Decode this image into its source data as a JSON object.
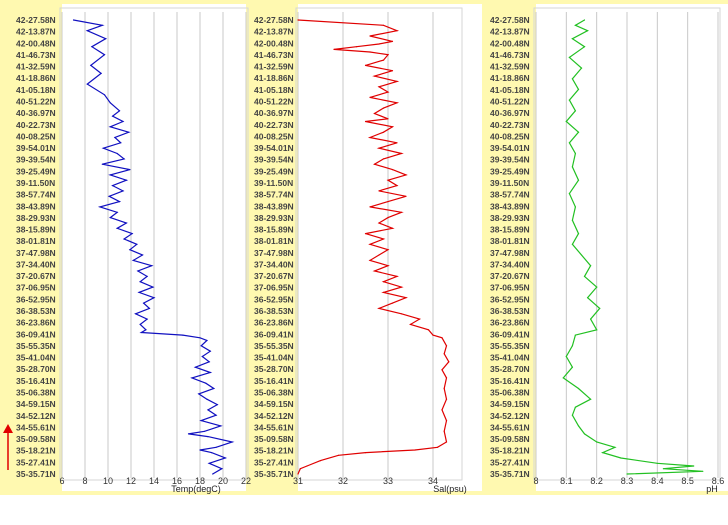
{
  "chart_data": [
    {
      "type": "line",
      "xlabel": "Temp(degC)",
      "ylabel": "",
      "x_ticks": [
        "6",
        "8",
        "10",
        "12",
        "14",
        "16",
        "18",
        "20",
        "22"
      ],
      "xlim": [
        6,
        22
      ],
      "line_color": "#1010c0",
      "series": [
        {
          "values": [
            [
              7.0,
              0
            ],
            [
              9.5,
              2
            ],
            [
              8.2,
              4
            ],
            [
              9.8,
              7
            ],
            [
              8.6,
              10
            ],
            [
              9.7,
              13
            ],
            [
              8.5,
              17
            ],
            [
              9.4,
              20
            ],
            [
              8.2,
              24
            ],
            [
              9.7,
              28
            ],
            [
              10.2,
              31
            ],
            [
              11.0,
              34
            ],
            [
              10.4,
              36
            ],
            [
              11.3,
              38
            ],
            [
              10.2,
              40
            ],
            [
              11.8,
              42
            ],
            [
              10.6,
              44
            ],
            [
              11.1,
              46
            ],
            [
              9.6,
              48
            ],
            [
              10.8,
              50
            ],
            [
              11.4,
              52
            ],
            [
              9.5,
              54
            ],
            [
              11.9,
              56
            ],
            [
              10.2,
              58
            ],
            [
              11.6,
              60
            ],
            [
              10.4,
              62
            ],
            [
              11.3,
              64
            ],
            [
              10.1,
              66
            ],
            [
              11.0,
              68
            ],
            [
              9.3,
              70
            ],
            [
              10.8,
              72
            ],
            [
              10.2,
              74
            ],
            [
              11.6,
              76
            ],
            [
              10.8,
              78
            ],
            [
              12.1,
              80
            ],
            [
              11.4,
              82
            ],
            [
              12.5,
              84
            ],
            [
              11.9,
              86
            ],
            [
              13.0,
              88
            ],
            [
              12.2,
              90
            ],
            [
              13.8,
              92
            ],
            [
              12.6,
              94
            ],
            [
              13.4,
              96
            ],
            [
              12.8,
              98
            ],
            [
              13.9,
              100
            ],
            [
              12.7,
              102
            ],
            [
              14.0,
              104
            ],
            [
              13.1,
              106
            ],
            [
              13.6,
              108
            ],
            [
              12.4,
              110
            ],
            [
              13.4,
              112
            ],
            [
              12.8,
              114
            ],
            [
              13.3,
              116
            ],
            [
              12.9,
              117
            ],
            [
              16.5,
              118
            ],
            [
              18.0,
              119
            ],
            [
              18.6,
              120
            ],
            [
              18.1,
              122
            ],
            [
              18.9,
              124
            ],
            [
              18.2,
              126
            ],
            [
              18.8,
              128
            ],
            [
              17.6,
              130
            ],
            [
              18.9,
              132
            ],
            [
              17.3,
              134
            ],
            [
              18.5,
              136
            ],
            [
              19.2,
              138
            ],
            [
              17.9,
              140
            ],
            [
              18.6,
              142
            ],
            [
              19.5,
              144
            ],
            [
              18.7,
              146
            ],
            [
              19.4,
              148
            ],
            [
              18.1,
              150
            ],
            [
              19.8,
              152
            ],
            [
              18.4,
              154
            ],
            [
              17.0,
              155
            ],
            [
              18.7,
              156
            ],
            [
              20.8,
              158
            ],
            [
              19.4,
              160
            ],
            [
              18.0,
              161
            ],
            [
              19.0,
              162
            ],
            [
              20.2,
              164
            ],
            [
              18.8,
              166
            ],
            [
              19.9,
              168
            ],
            [
              19.1,
              170
            ]
          ]
        }
      ]
    },
    {
      "type": "line",
      "xlabel": "Sal(psu)",
      "ylabel": "",
      "x_ticks": [
        "31",
        "32",
        "33",
        "34"
      ],
      "xlim": [
        31,
        34.6
      ],
      "line_color": "#e00000",
      "series": [
        {
          "values": [
            [
              31.0,
              0
            ],
            [
              32.9,
              2
            ],
            [
              33.2,
              4
            ],
            [
              32.6,
              6
            ],
            [
              33.1,
              8
            ],
            [
              32.8,
              9
            ],
            [
              32.3,
              10
            ],
            [
              31.8,
              11
            ],
            [
              32.6,
              12
            ],
            [
              33.0,
              13
            ],
            [
              32.9,
              15
            ],
            [
              32.5,
              17
            ],
            [
              33.1,
              19
            ],
            [
              32.7,
              21
            ],
            [
              33.2,
              23
            ],
            [
              32.8,
              25
            ],
            [
              33.0,
              27
            ],
            [
              32.6,
              29
            ],
            [
              33.2,
              31
            ],
            [
              32.9,
              33
            ],
            [
              32.7,
              35
            ],
            [
              33.0,
              37
            ],
            [
              32.5,
              38
            ],
            [
              33.1,
              40
            ],
            [
              32.9,
              42
            ],
            [
              32.6,
              44
            ],
            [
              33.2,
              46
            ],
            [
              32.8,
              48
            ],
            [
              33.3,
              50
            ],
            [
              32.9,
              52
            ],
            [
              32.7,
              54
            ],
            [
              33.1,
              56
            ],
            [
              33.4,
              58
            ],
            [
              33.0,
              60
            ],
            [
              33.2,
              62
            ],
            [
              32.8,
              64
            ],
            [
              33.4,
              66
            ],
            [
              33.0,
              68
            ],
            [
              32.6,
              70
            ],
            [
              33.3,
              72
            ],
            [
              33.0,
              74
            ],
            [
              32.8,
              76
            ],
            [
              33.1,
              78
            ],
            [
              32.5,
              80
            ],
            [
              32.9,
              82
            ],
            [
              32.6,
              84
            ],
            [
              33.0,
              86
            ],
            [
              32.8,
              88
            ],
            [
              32.6,
              90
            ],
            [
              33.0,
              92
            ],
            [
              32.7,
              94
            ],
            [
              33.2,
              96
            ],
            [
              32.9,
              98
            ],
            [
              33.3,
              100
            ],
            [
              32.9,
              102
            ],
            [
              33.4,
              104
            ],
            [
              33.1,
              106
            ],
            [
              32.8,
              108
            ],
            [
              33.3,
              110
            ],
            [
              33.7,
              112
            ],
            [
              33.5,
              114
            ],
            [
              33.9,
              116
            ],
            [
              34.0,
              118
            ],
            [
              34.2,
              119
            ],
            [
              34.3,
              122
            ],
            [
              34.25,
              125
            ],
            [
              34.35,
              128
            ],
            [
              34.2,
              131
            ],
            [
              34.3,
              134
            ],
            [
              34.25,
              138
            ],
            [
              34.3,
              142
            ],
            [
              34.2,
              146
            ],
            [
              34.3,
              150
            ],
            [
              34.25,
              154
            ],
            [
              34.3,
              158
            ],
            [
              34.1,
              160
            ],
            [
              33.6,
              161
            ],
            [
              32.5,
              162
            ],
            [
              31.9,
              163
            ],
            [
              31.5,
              165
            ],
            [
              31.2,
              167
            ],
            [
              31.05,
              168
            ],
            [
              31.0,
              170
            ]
          ]
        }
      ]
    },
    {
      "type": "line",
      "xlabel": "pH",
      "ylabel": "",
      "x_ticks": [
        "8",
        "8.1",
        "8.2",
        "8.3",
        "8.4",
        "8.5",
        "8.6"
      ],
      "xlim": [
        8.0,
        8.6
      ],
      "line_color": "#22c022",
      "series": [
        {
          "values": [
            [
              8.16,
              0
            ],
            [
              8.13,
              2
            ],
            [
              8.17,
              4
            ],
            [
              8.12,
              7
            ],
            [
              8.16,
              10
            ],
            [
              8.11,
              14
            ],
            [
              8.15,
              18
            ],
            [
              8.12,
              22
            ],
            [
              8.14,
              26
            ],
            [
              8.11,
              30
            ],
            [
              8.13,
              34
            ],
            [
              8.1,
              38
            ],
            [
              8.14,
              42
            ],
            [
              8.11,
              46
            ],
            [
              8.13,
              50
            ],
            [
              8.12,
              55
            ],
            [
              8.14,
              60
            ],
            [
              8.11,
              65
            ],
            [
              8.13,
              70
            ],
            [
              8.12,
              75
            ],
            [
              8.14,
              80
            ],
            [
              8.12,
              84
            ],
            [
              8.15,
              88
            ],
            [
              8.18,
              92
            ],
            [
              8.16,
              96
            ],
            [
              8.2,
              100
            ],
            [
              8.17,
              104
            ],
            [
              8.21,
              108
            ],
            [
              8.18,
              112
            ],
            [
              8.2,
              116
            ],
            [
              8.13,
              118
            ],
            [
              8.12,
              122
            ],
            [
              8.1,
              126
            ],
            [
              8.12,
              130
            ],
            [
              8.09,
              134
            ],
            [
              8.14,
              138
            ],
            [
              8.18,
              142
            ],
            [
              8.13,
              145
            ],
            [
              8.12,
              148
            ],
            [
              8.14,
              152
            ],
            [
              8.16,
              155
            ],
            [
              8.2,
              158
            ],
            [
              8.26,
              160
            ],
            [
              8.22,
              162
            ],
            [
              8.28,
              164
            ],
            [
              8.4,
              166
            ],
            [
              8.52,
              167
            ],
            [
              8.42,
              168
            ],
            [
              8.55,
              169
            ],
            [
              8.3,
              170
            ]
          ]
        }
      ]
    }
  ],
  "latitude_labels": [
    "42-27.58N",
    "42-13.87N",
    "42-00.48N",
    "41-46.73N",
    "41-32.59N",
    "41-18.86N",
    "41-05.18N",
    "40-51.22N",
    "40-36.97N",
    "40-22.73N",
    "40-08.25N",
    "39-54.01N",
    "39-39.54N",
    "39-25.49N",
    "39-11.50N",
    "38-57.74N",
    "38-43.89N",
    "38-29.93N",
    "38-15.89N",
    "38-01.81N",
    "37-47.98N",
    "37-34.40N",
    "37-20.67N",
    "37-06.95N",
    "36-52.95N",
    "36-38.53N",
    "36-23.86N",
    "36-09.41N",
    "35-55.35N",
    "35-41.04N",
    "35-28.70N",
    "35-16.41N",
    "35-06.38N",
    "34-59.15N",
    "34-52.12N",
    "34-55.61N",
    "35-09.58N",
    "35-18.21N",
    "35-27.41N",
    "35-35.71N"
  ],
  "colors": {
    "label_band": "#fff9b0",
    "grid": "#c8c8c8",
    "arrow": "#e00000"
  }
}
